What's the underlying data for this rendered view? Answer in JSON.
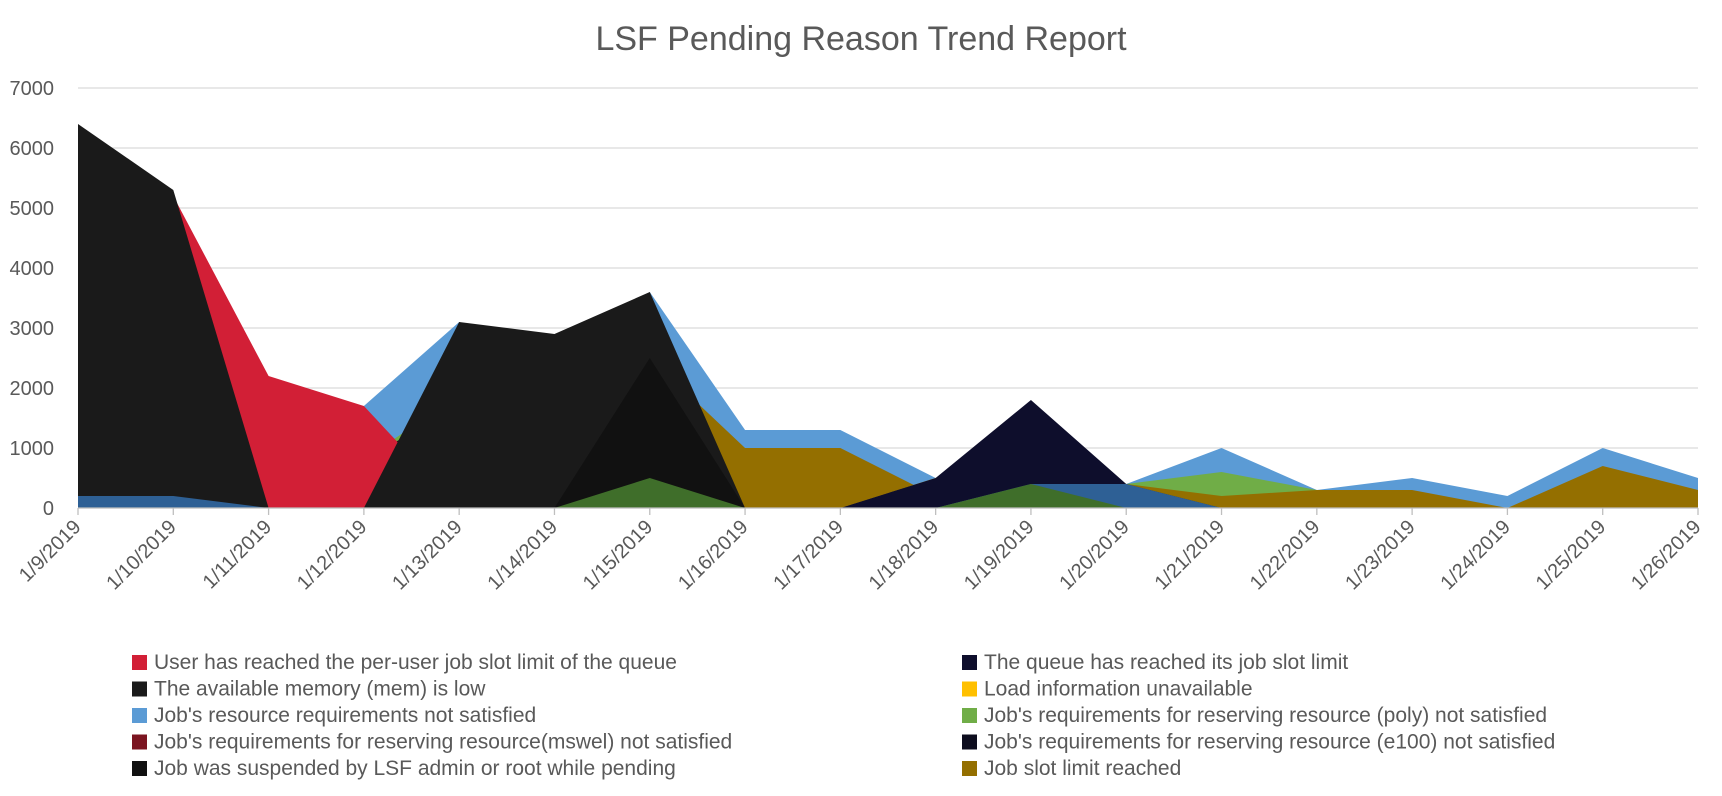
{
  "chart_data": {
    "type": "area",
    "title": "LSF Pending Reason Trend Report",
    "xlabel": "",
    "ylabel": "",
    "ylim": [
      0,
      7000
    ],
    "yticks": [
      0,
      1000,
      2000,
      3000,
      4000,
      5000,
      6000,
      7000
    ],
    "grid": true,
    "legend_position": "bottom",
    "categories": [
      "1/9/2019",
      "1/10/2019",
      "1/11/2019",
      "1/12/2019",
      "1/13/2019",
      "1/14/2019",
      "1/15/2019",
      "1/16/2019",
      "1/17/2019",
      "1/18/2019",
      "1/19/2019",
      "1/20/2019",
      "1/21/2019",
      "1/22/2019",
      "1/23/2019",
      "1/24/2019",
      "1/25/2019",
      "1/26/2019"
    ],
    "areas": [
      {
        "name": "Job's resource requirements not satisfied",
        "color": "#5B9BD5",
        "values": [
          6100,
          5100,
          1800,
          1700,
          3100,
          2500,
          3600,
          1300,
          1300,
          500,
          1100,
          400,
          1000,
          300,
          500,
          200,
          1000,
          500
        ]
      },
      {
        "name": "Job's requirements for reserving resource(mswel) not satisfied",
        "color": "#7B1420",
        "values": [
          3900,
          3400,
          900,
          0,
          0,
          0,
          0,
          0,
          0,
          0,
          0,
          0,
          0,
          0,
          0,
          0,
          0,
          0
        ]
      },
      {
        "name": "Job's requirements for reserving resource (poly) not satisfied",
        "color": "#70AD47",
        "values": [
          0,
          0,
          0,
          800,
          1900,
          1800,
          0,
          0,
          0,
          0,
          0,
          400,
          600,
          300,
          0,
          0,
          0,
          0
        ]
      },
      {
        "name": "Job's requirements for reserving resource (e100) not satisfied",
        "color": "#0D0D1E",
        "values": [
          2800,
          2100,
          0,
          800,
          1700,
          1800,
          0,
          0,
          0,
          0,
          0,
          0,
          0,
          0,
          0,
          0,
          0,
          0
        ]
      },
      {
        "name": "Job slot limit reached",
        "color": "#946F00",
        "values": [
          2200,
          2100,
          900,
          800,
          1200,
          1000,
          2500,
          1000,
          1000,
          200,
          800,
          400,
          200,
          300,
          300,
          0,
          700,
          300
        ]
      },
      {
        "name": "Load information unavailable",
        "color": "#FFC000",
        "values": [
          0,
          0,
          0,
          0,
          0,
          0,
          0,
          0,
          0,
          500,
          1500,
          400,
          0,
          0,
          0,
          0,
          0,
          0
        ]
      },
      {
        "name": "The queue has reached its job slot limit",
        "color": "#0E0E2C",
        "values": [
          0,
          0,
          0,
          0,
          0,
          0,
          0,
          0,
          0,
          500,
          1800,
          400,
          0,
          0,
          0,
          0,
          0,
          0
        ]
      },
      {
        "name": "User has reached the per-user job slot limit of the queue",
        "color": "#D21F36",
        "values": [
          6100,
          5200,
          2200,
          1700,
          0,
          0,
          0,
          0,
          0,
          0,
          0,
          0,
          0,
          0,
          0,
          0,
          0,
          0
        ]
      },
      {
        "name": "The available memory (mem) is low",
        "color": "#1A1A1A",
        "values": [
          6400,
          5300,
          0,
          0,
          3100,
          2900,
          3600,
          0,
          0,
          0,
          0,
          0,
          0,
          0,
          0,
          0,
          0,
          0
        ]
      },
      {
        "name": "Job was suspended by LSF admin or root while pending",
        "color": "#111111",
        "values": [
          0,
          0,
          0,
          0,
          0,
          0,
          2500,
          0,
          0,
          0,
          0,
          0,
          0,
          0,
          0,
          0,
          0,
          0
        ]
      },
      {
        "name": "",
        "color": "#2E6095",
        "values": [
          200,
          200,
          0,
          0,
          0,
          0,
          0,
          0,
          0,
          0,
          400,
          400,
          0,
          0,
          0,
          0,
          0,
          0
        ]
      },
      {
        "name": "",
        "color": "#3F6E2A",
        "values": [
          0,
          0,
          0,
          0,
          0,
          0,
          500,
          0,
          0,
          0,
          400,
          0,
          0,
          0,
          0,
          0,
          0,
          0
        ]
      }
    ],
    "legend": [
      {
        "label": "User has reached the per-user job slot limit of the queue",
        "color": "#D21F36"
      },
      {
        "label": "The queue has reached its job slot limit",
        "color": "#0E0E2C"
      },
      {
        "label": "The available memory (mem) is low",
        "color": "#1A1A1A"
      },
      {
        "label": "Load information unavailable",
        "color": "#FFC000"
      },
      {
        "label": "Job's resource requirements not satisfied",
        "color": "#5B9BD5"
      },
      {
        "label": "Job's requirements for reserving resource (poly) not satisfied",
        "color": "#70AD47"
      },
      {
        "label": "Job's requirements for reserving resource(mswel) not satisfied",
        "color": "#7B1420"
      },
      {
        "label": "Job's requirements for reserving resource (e100) not satisfied",
        "color": "#0D0D1E"
      },
      {
        "label": "Job was suspended by LSF admin or root while pending",
        "color": "#111111"
      },
      {
        "label": "Job slot limit reached",
        "color": "#946F00"
      }
    ]
  }
}
